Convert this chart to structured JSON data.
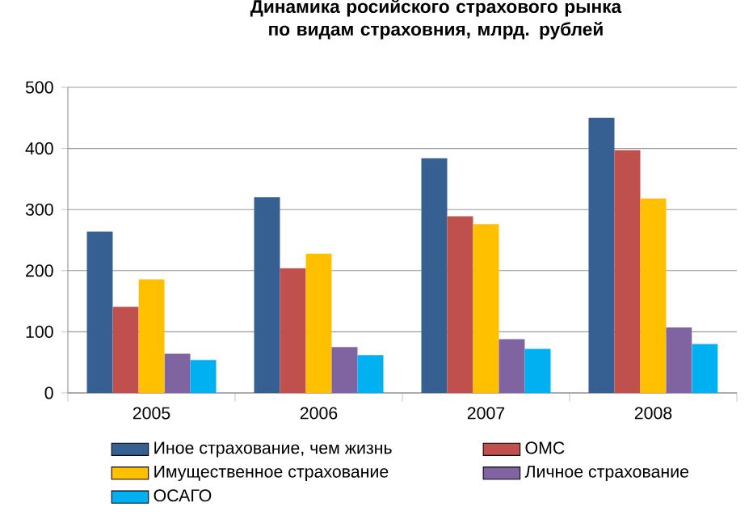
{
  "chart_data": {
    "type": "bar",
    "title": "Динамика росийского страхового рынка по видам страховния, млрд. рублей",
    "categories": [
      "2005",
      "2006",
      "2007",
      "2008"
    ],
    "series": [
      {
        "name": "Иное страхование, чем жизнь",
        "color": "#376092",
        "values": [
          264,
          320,
          384,
          450
        ]
      },
      {
        "name": "ОМС",
        "color": "#c0504d",
        "values": [
          141,
          204,
          289,
          397
        ]
      },
      {
        "name": "Имущественное страхование",
        "color": "#ffc000",
        "values": [
          186,
          228,
          276,
          318
        ]
      },
      {
        "name": "Личное страхование",
        "color": "#8064a2",
        "values": [
          64,
          75,
          88,
          107
        ]
      },
      {
        "name": "ОСАГО",
        "color": "#00b0f0",
        "values": [
          54,
          62,
          72,
          80
        ]
      }
    ],
    "ylim": [
      0,
      500
    ],
    "yticks": [
      0,
      100,
      200,
      300,
      400,
      500
    ],
    "grid": "y",
    "legend": "bottom"
  }
}
